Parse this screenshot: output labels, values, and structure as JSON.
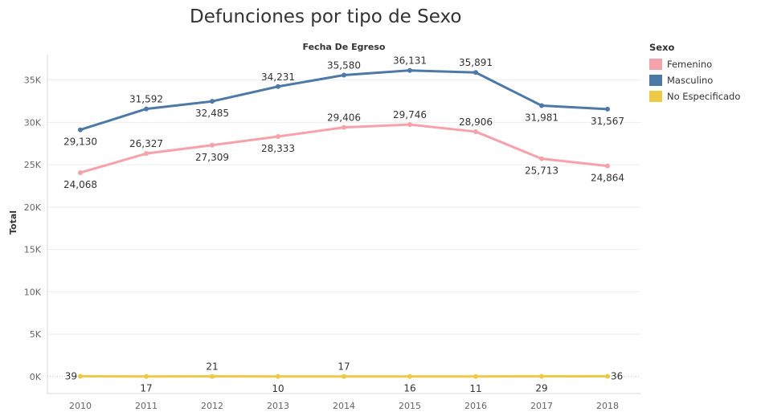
{
  "chart_data": {
    "type": "line",
    "title": "Defunciones por tipo de Sexo",
    "xlabel": "Fecha De Egreso",
    "ylabel": "Total",
    "x": [
      "2010",
      "2011",
      "2012",
      "2013",
      "2014",
      "2015",
      "2016",
      "2017",
      "2018"
    ],
    "ylim": [
      -2000,
      38000
    ],
    "yticks": [
      0,
      5000,
      10000,
      15000,
      20000,
      25000,
      30000,
      35000
    ],
    "ytick_labels": [
      "0K",
      "5K",
      "10K",
      "15K",
      "20K",
      "25K",
      "30K",
      "35K"
    ],
    "grid": true,
    "legend": {
      "title": "Sexo",
      "position": "right"
    },
    "series": [
      {
        "name": "Femenino",
        "color": "#f7a1ab",
        "values": [
          24068,
          26327,
          27309,
          28333,
          29406,
          29746,
          28906,
          25713,
          24864
        ],
        "labels": [
          "24,068",
          "26,327",
          "27,309",
          "28,333",
          "29,406",
          "29,746",
          "28,906",
          "25,713",
          "24,864"
        ]
      },
      {
        "name": "Masculino",
        "color": "#4e79a7",
        "values": [
          29130,
          31592,
          32485,
          34231,
          35580,
          36131,
          35891,
          31981,
          31567
        ],
        "labels": [
          "29,130",
          "31,592",
          "32,485",
          "34,231",
          "35,580",
          "36,131",
          "35,891",
          "31,981",
          "31,567"
        ]
      },
      {
        "name": "No Especificado",
        "color": "#edc948",
        "values": [
          39,
          17,
          21,
          10,
          17,
          16,
          11,
          29,
          36
        ],
        "labels": [
          "39",
          "17",
          "21",
          "10",
          "17",
          "16",
          "11",
          "29",
          "36"
        ]
      }
    ]
  }
}
